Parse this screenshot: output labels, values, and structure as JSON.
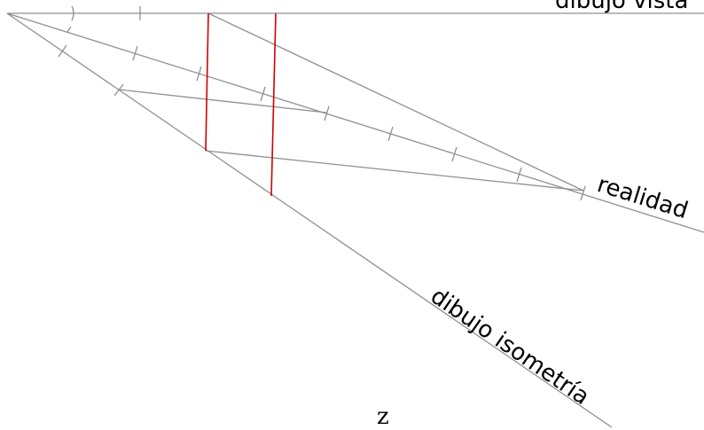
{
  "labels": {
    "top": "dibujo vista",
    "realidad": "realidad",
    "isometria": "dibujo isometría",
    "axis": "z"
  },
  "colors": {
    "guide_line": "#909090",
    "projection_line": "#d40000",
    "text": "#000000"
  }
}
